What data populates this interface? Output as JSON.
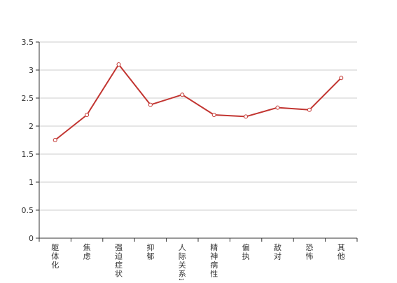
{
  "chart_data": {
    "type": "line",
    "categories": [
      "躯体化",
      "焦虑",
      "强迫症状",
      "抑郁",
      "人际关系敏感",
      "精神病性",
      "偏执",
      "敌对",
      "恐怖",
      "其他"
    ],
    "series": [
      {
        "values": [
          1.75,
          2.2,
          3.1,
          2.38,
          2.56,
          2.2,
          2.17,
          2.33,
          2.29,
          2.86
        ]
      }
    ],
    "y_ticks": [
      "0",
      "0.5",
      "1",
      "1.5",
      "2",
      "2.5",
      "3",
      "3.5"
    ],
    "ylim": [
      0,
      3.5
    ],
    "grid": true,
    "line_color": "#c23531",
    "title": "",
    "xlabel": "",
    "ylabel": ""
  }
}
